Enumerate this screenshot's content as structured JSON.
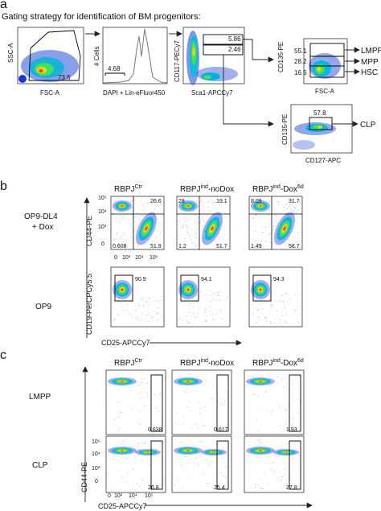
{
  "panel_letters": [
    "a",
    "b",
    "c"
  ],
  "panel_a": {
    "title": "Gating strategy for identification of BM progenitors:",
    "plot1": {
      "xlabel": "FSC-A",
      "ylabel": "SSC-A",
      "gate_value": "73.6"
    },
    "plot2": {
      "xlabel": "DAPI + Lin-eFluor450",
      "ylabel": "# Cells",
      "gate_value": "4.68"
    },
    "plot3": {
      "xlabel": "Sca1-APCCy7",
      "ylabel": "CD117-PECy7",
      "gate_values": [
        "5.86",
        "2.46"
      ]
    },
    "plot4": {
      "xlabel": "FSC-A",
      "ylabel": "CD135-PE",
      "gate_values": [
        "55.1",
        "28.2",
        "16.6"
      ],
      "populations": [
        "LMPP",
        "MPP",
        "HSC"
      ]
    },
    "plot5": {
      "xlabel": "CD127-APC",
      "ylabel": "CD135-PE",
      "gate_value": "57.8",
      "population": "CLP"
    }
  },
  "panel_b": {
    "columns": [
      {
        "base": "RBPJ",
        "sup": "Ctr",
        "suffix": ""
      },
      {
        "base": "RBPJ",
        "sup": "ind",
        "suffix": "-noDox"
      },
      {
        "base": "RBPJ",
        "sup": "ind",
        "suffix": "-Dox",
        "suffix_sup": "6d"
      }
    ],
    "row1_label_line1": "OP9-DL4",
    "row1_label_line2": "+ Dox",
    "row2_label": "OP9",
    "row1_ylabel": "CD44-PE",
    "row2_ylabel": "CD19-PerCPCy5.5",
    "xlabel": "CD25-APCCy7",
    "row1_quadrants": [
      [
        "",
        "26.6",
        "0.608",
        "51.9"
      ],
      [
        "28",
        "19.1",
        "1.2",
        "51.7"
      ],
      [
        "8.09",
        "31.7",
        "1.49",
        "58.7"
      ]
    ],
    "row2_gates": [
      "90.9",
      "94.1",
      "94.3"
    ],
    "y_ticks": [
      "10⁵",
      "10⁴",
      "10³",
      "0"
    ],
    "x_ticks": [
      "0",
      "10³",
      "10⁴",
      "10⁵"
    ]
  },
  "panel_c": {
    "columns": [
      {
        "base": "RBPJ",
        "sup": "Ctr",
        "suffix": ""
      },
      {
        "base": "RBPJ",
        "sup": "ind",
        "suffix": "-noDox"
      },
      {
        "base": "RBPJ",
        "sup": "ind",
        "suffix": "-Dox",
        "suffix_sup": "6d"
      }
    ],
    "row1_label": "LMPP",
    "row2_label": "CLP",
    "ylabel": "CD44-PE",
    "xlabel": "CD25-APCCy7",
    "row1_gates": [
      "0.638",
      "0.617",
      "1.93"
    ],
    "row2_gates": [
      "26.8",
      "25.4",
      "27.8"
    ],
    "y_ticks": [
      "10⁵",
      "10⁴",
      "10³",
      "0"
    ],
    "x_ticks": [
      "0",
      "10³",
      "10⁴",
      "10⁵"
    ]
  }
}
